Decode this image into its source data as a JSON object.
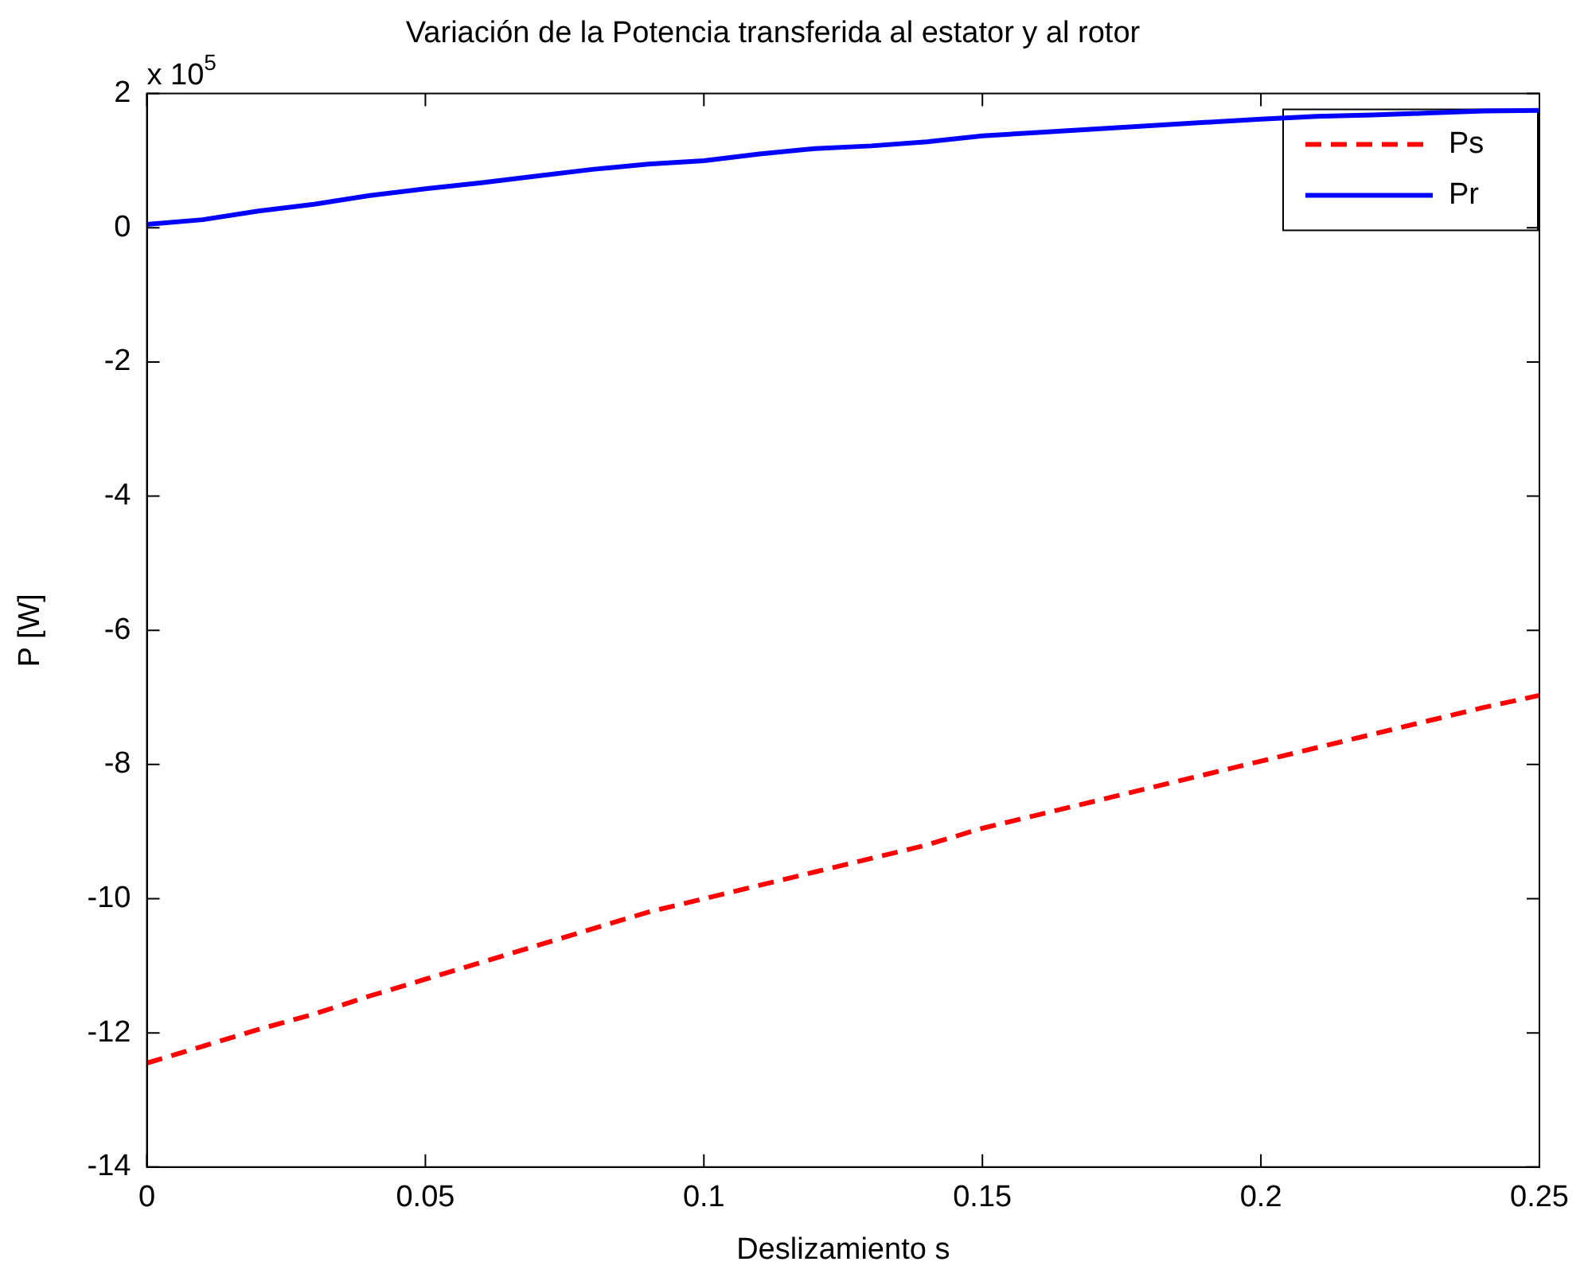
{
  "chart_data": {
    "type": "line",
    "title": "Variación de la Potencia transferida al estator y al rotor",
    "xlabel": "Deslizamiento s",
    "ylabel": "P [W]",
    "annotations": [
      "x 10$^{5}$"
    ],
    "x": [
      0,
      0.01,
      0.02,
      0.03,
      0.04,
      0.05,
      0.06,
      0.07,
      0.08,
      0.09,
      0.1,
      0.11,
      0.12,
      0.13,
      0.14,
      0.15,
      0.16,
      0.17,
      0.18,
      0.19,
      0.2,
      0.21,
      0.22,
      0.23,
      0.24,
      0.25
    ],
    "series": [
      {
        "name": "Ps",
        "color": "#ff0000",
        "line_style": "dashed",
        "values": [
          -12.45,
          -12.2,
          -11.95,
          -11.72,
          -11.45,
          -11.2,
          -10.95,
          -10.7,
          -10.45,
          -10.2,
          -10.0,
          -9.8,
          -9.6,
          -9.4,
          -9.2,
          -8.95,
          -8.75,
          -8.55,
          -8.35,
          -8.15,
          -7.95,
          -7.75,
          -7.55,
          -7.35,
          -7.15,
          -6.97
        ]
      },
      {
        "name": "Pr",
        "color": "#0000ff",
        "line_style": "solid",
        "values": [
          0.05,
          0.12,
          0.25,
          0.35,
          0.48,
          0.58,
          0.67,
          0.77,
          0.87,
          0.95,
          1.0,
          1.1,
          1.18,
          1.22,
          1.28,
          1.37,
          1.42,
          1.47,
          1.52,
          1.57,
          1.62,
          1.66,
          1.68,
          1.71,
          1.74,
          1.75
        ]
      }
    ],
    "xlim": [
      0,
      0.25
    ],
    "xticks": [
      0,
      0.05,
      0.1,
      0.15,
      0.2,
      0.25
    ],
    "ylim": [
      -14,
      2
    ],
    "yticks": [
      -14,
      -12,
      -10,
      -8,
      -6,
      -4,
      -2,
      0,
      2
    ],
    "grid": false,
    "legend": "top right",
    "marker": "none"
  }
}
